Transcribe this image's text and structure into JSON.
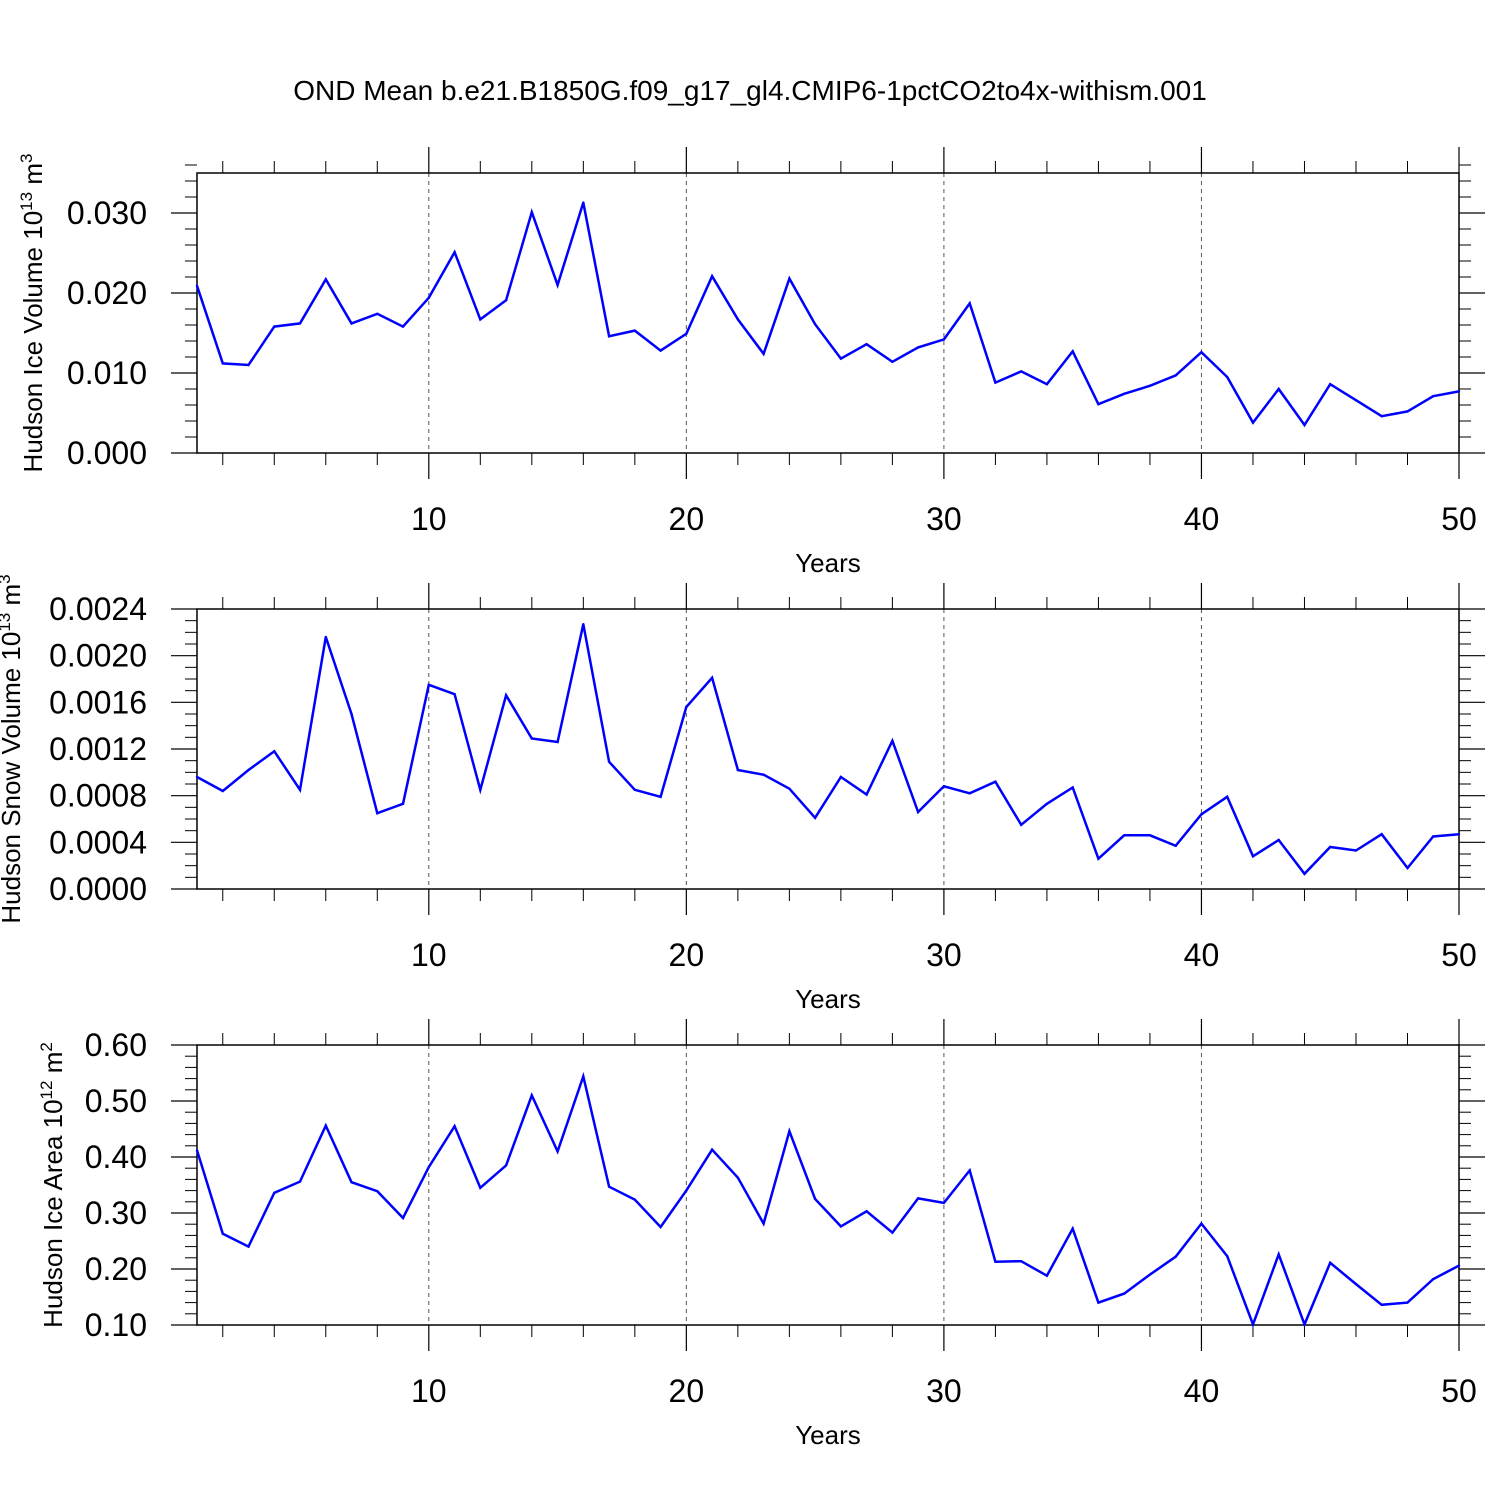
{
  "title": "OND Mean b.e21.B1850G.f09_g17_gl4.CMIP6-1pctCO2to4x-withism.001",
  "colors": {
    "line": "#0000ff",
    "axis": "#000000",
    "grid": "#555555"
  },
  "chart_data": [
    {
      "type": "line",
      "ylabel_main": "Hudson Ice Volume 10",
      "ylabel_exp": "13",
      "ylabel_unit": " m",
      "ylabel_unit_exp": "3",
      "xlabel": "Years",
      "xlim": [
        1,
        50
      ],
      "ylim": [
        0.0,
        0.035
      ],
      "yticks": [
        0.0,
        0.01,
        0.02,
        0.03
      ],
      "yticklabels": [
        "0.000",
        "0.010",
        "0.020",
        "0.030"
      ],
      "yminor_step": 0.002,
      "xticks": [
        10,
        20,
        30,
        40,
        50
      ],
      "xticklabels": [
        "10",
        "20",
        "30",
        "40",
        "50"
      ],
      "x": [
        1,
        2,
        3,
        4,
        5,
        6,
        7,
        8,
        9,
        10,
        11,
        12,
        13,
        14,
        15,
        16,
        17,
        18,
        19,
        20,
        21,
        22,
        23,
        24,
        25,
        26,
        27,
        28,
        29,
        30,
        31,
        32,
        33,
        34,
        35,
        36,
        37,
        38,
        39,
        40,
        41,
        42,
        43,
        44,
        45,
        46,
        47,
        48,
        49,
        50
      ],
      "values": [
        0.0209,
        0.0112,
        0.011,
        0.0158,
        0.0162,
        0.0217,
        0.0162,
        0.0174,
        0.0158,
        0.0194,
        0.0251,
        0.0167,
        0.0191,
        0.0301,
        0.021,
        0.0313,
        0.0146,
        0.0153,
        0.0128,
        0.0149,
        0.0221,
        0.0167,
        0.0124,
        0.0218,
        0.0161,
        0.0118,
        0.0136,
        0.0114,
        0.0132,
        0.0142,
        0.0187,
        0.0088,
        0.0102,
        0.0086,
        0.0127,
        0.0061,
        0.0074,
        0.0084,
        0.0097,
        0.0126,
        0.0095,
        0.0038,
        0.008,
        0.0035,
        0.0086,
        0.0066,
        0.0046,
        0.0052,
        0.0071,
        0.0077
      ]
    },
    {
      "type": "line",
      "ylabel_main": "Hudson Snow Volume 10",
      "ylabel_exp": "13",
      "ylabel_unit": " m",
      "ylabel_unit_exp": "3",
      "xlabel": "Years",
      "xlim": [
        1,
        50
      ],
      "ylim": [
        0.0,
        0.0024
      ],
      "yticks": [
        0.0,
        0.0004,
        0.0008,
        0.0012,
        0.0016,
        0.002,
        0.0024
      ],
      "yticklabels": [
        "0.0000",
        "0.0004",
        "0.0008",
        "0.0012",
        "0.0016",
        "0.0020",
        "0.0024"
      ],
      "yminor_step": 0.0001,
      "xticks": [
        10,
        20,
        30,
        40,
        50
      ],
      "xticklabels": [
        "10",
        "20",
        "30",
        "40",
        "50"
      ],
      "x": [
        1,
        2,
        3,
        4,
        5,
        6,
        7,
        8,
        9,
        10,
        11,
        12,
        13,
        14,
        15,
        16,
        17,
        18,
        19,
        20,
        21,
        22,
        23,
        24,
        25,
        26,
        27,
        28,
        29,
        30,
        31,
        32,
        33,
        34,
        35,
        36,
        37,
        38,
        39,
        40,
        41,
        42,
        43,
        44,
        45,
        46,
        47,
        48,
        49,
        50
      ],
      "values": [
        0.00096,
        0.00084,
        0.00102,
        0.00118,
        0.00085,
        0.00216,
        0.0015,
        0.00065,
        0.00073,
        0.00175,
        0.00167,
        0.00085,
        0.00166,
        0.00129,
        0.00126,
        0.00227,
        0.00109,
        0.00085,
        0.00079,
        0.00156,
        0.00181,
        0.00102,
        0.00098,
        0.00086,
        0.00061,
        0.00096,
        0.00081,
        0.00127,
        0.00066,
        0.00088,
        0.00082,
        0.00092,
        0.00055,
        0.00073,
        0.00087,
        0.00026,
        0.00046,
        0.00046,
        0.00037,
        0.00064,
        0.00079,
        0.00028,
        0.00042,
        0.00013,
        0.00036,
        0.00033,
        0.00047,
        0.00018,
        0.00045,
        0.00047
      ]
    },
    {
      "type": "line",
      "ylabel_main": "Hudson Ice Area 10",
      "ylabel_exp": "12",
      "ylabel_unit": " m",
      "ylabel_unit_exp": "2",
      "xlabel": "Years",
      "xlim": [
        1,
        50
      ],
      "ylim": [
        0.1,
        0.6
      ],
      "yticks": [
        0.1,
        0.2,
        0.3,
        0.4,
        0.5,
        0.6
      ],
      "yticklabels": [
        "0.10",
        "0.20",
        "0.30",
        "0.40",
        "0.50",
        "0.60"
      ],
      "yminor_step": 0.02,
      "xticks": [
        10,
        20,
        30,
        40,
        50
      ],
      "xticklabels": [
        "10",
        "20",
        "30",
        "40",
        "50"
      ],
      "x": [
        1,
        2,
        3,
        4,
        5,
        6,
        7,
        8,
        9,
        10,
        11,
        12,
        13,
        14,
        15,
        16,
        17,
        18,
        19,
        20,
        21,
        22,
        23,
        24,
        25,
        26,
        27,
        28,
        29,
        30,
        31,
        32,
        33,
        34,
        35,
        36,
        37,
        38,
        39,
        40,
        41,
        42,
        43,
        44,
        45,
        46,
        47,
        48,
        49,
        50
      ],
      "values": [
        0.412,
        0.263,
        0.24,
        0.336,
        0.356,
        0.456,
        0.355,
        0.339,
        0.291,
        0.382,
        0.455,
        0.345,
        0.385,
        0.51,
        0.41,
        0.544,
        0.347,
        0.324,
        0.275,
        0.34,
        0.413,
        0.363,
        0.281,
        0.446,
        0.325,
        0.276,
        0.303,
        0.265,
        0.326,
        0.318,
        0.376,
        0.213,
        0.214,
        0.188,
        0.272,
        0.14,
        0.156,
        0.19,
        0.222,
        0.281,
        0.223,
        0.101,
        0.226,
        0.101,
        0.211,
        0.173,
        0.136,
        0.14,
        0.182,
        0.206
      ]
    }
  ]
}
